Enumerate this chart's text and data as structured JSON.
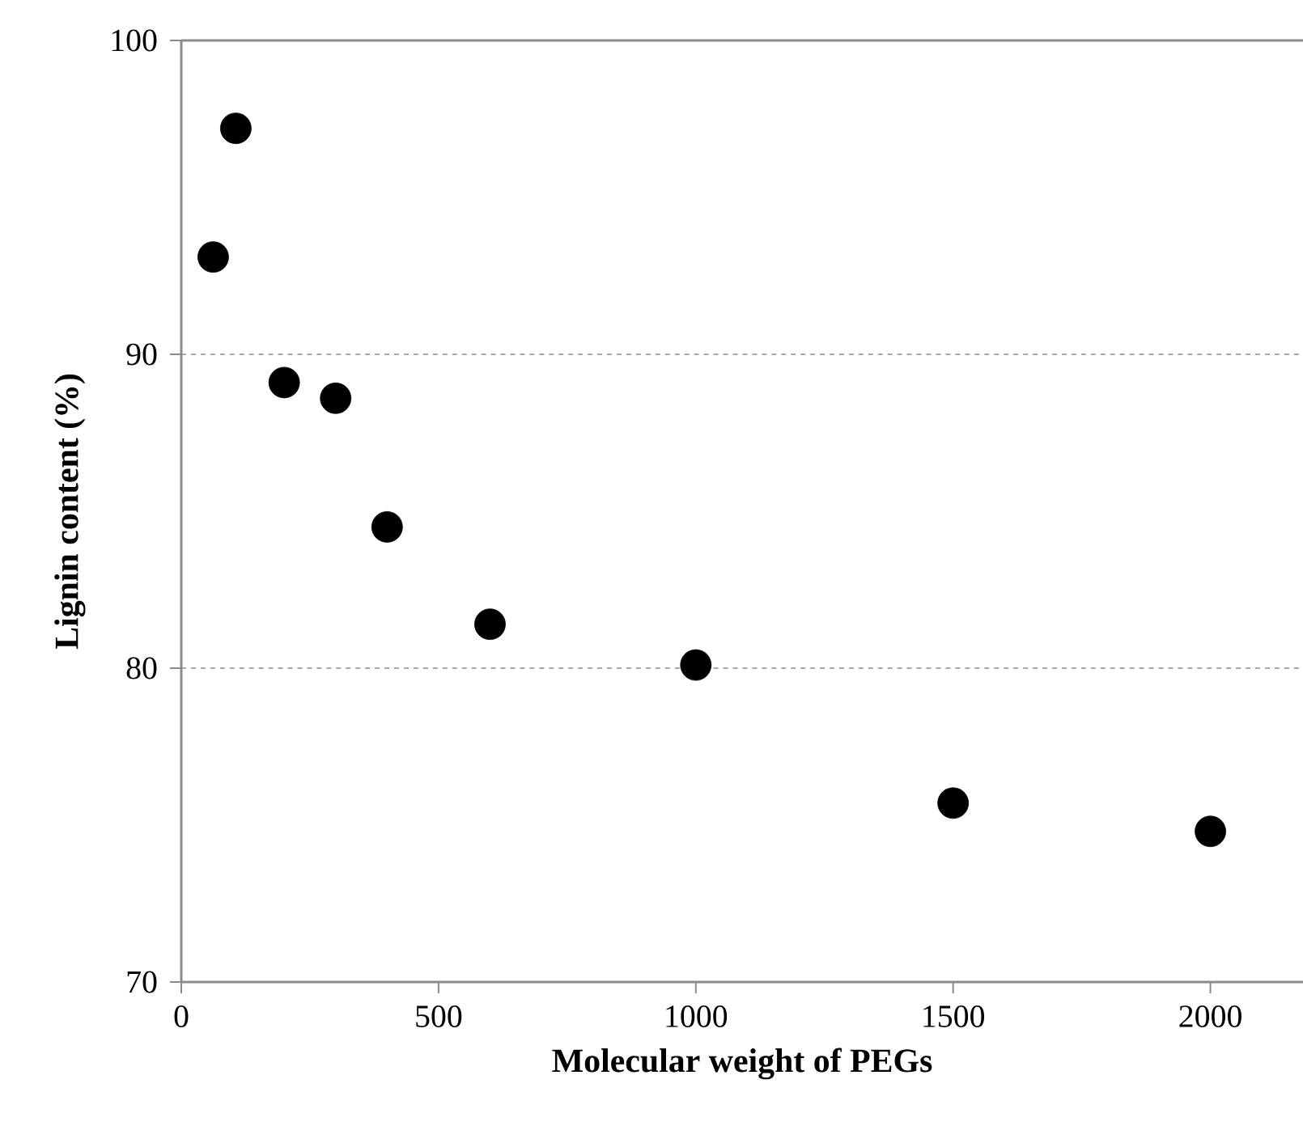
{
  "chart_data": {
    "type": "scatter",
    "xlabel": "Molecular weight of PEGs",
    "ylabel": "Lignin content (%)",
    "x": [
      62,
      106,
      200,
      300,
      400,
      600,
      1000,
      1500,
      2000
    ],
    "series": [
      {
        "color": "#000000",
        "values": [
          93.1,
          97.2,
          89.1,
          88.6,
          84.5,
          81.4,
          80.1,
          75.7,
          74.8
        ]
      }
    ],
    "xlim": [
      0,
      2180
    ],
    "ylim": [
      70,
      100
    ],
    "xticks": [
      0,
      500,
      1000,
      1500,
      2000
    ],
    "yticks": [
      70,
      80,
      90,
      100
    ],
    "grid": "y",
    "marker": "circle"
  }
}
